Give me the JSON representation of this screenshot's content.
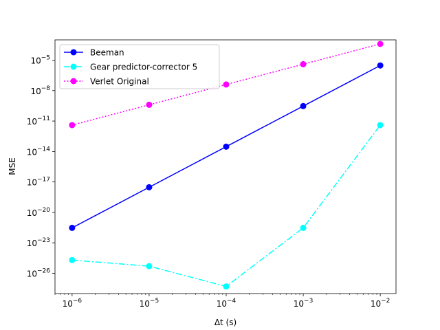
{
  "chart_data": {
    "type": "line",
    "xscale": "log",
    "yscale": "log",
    "xlabel": "Δt (s)",
    "ylabel": "MSE",
    "xlim": [
      6e-07,
      0.016
    ],
    "ylim": [
      1e-28,
      0.001
    ],
    "x": [
      1e-06,
      1e-05,
      0.0001,
      0.001,
      0.01
    ],
    "x_tick_labels": [
      {
        "base": "10",
        "exp": "−6"
      },
      {
        "base": "10",
        "exp": "−5"
      },
      {
        "base": "10",
        "exp": "−4"
      },
      {
        "base": "10",
        "exp": "−3"
      },
      {
        "base": "10",
        "exp": "−2"
      }
    ],
    "y_ticks": [
      1e-26,
      1e-23,
      1e-20,
      1e-17,
      1e-14,
      1e-11,
      1e-08,
      1e-05
    ],
    "y_tick_labels": [
      {
        "base": "10",
        "exp": "−26"
      },
      {
        "base": "10",
        "exp": "−23"
      },
      {
        "base": "10",
        "exp": "−20"
      },
      {
        "base": "10",
        "exp": "−17"
      },
      {
        "base": "10",
        "exp": "−14"
      },
      {
        "base": "10",
        "exp": "−11"
      },
      {
        "base": "10",
        "exp": "−8"
      },
      {
        "base": "10",
        "exp": "−5"
      }
    ],
    "grid": false,
    "legend_position": "top-left",
    "series": [
      {
        "name": "Beeman",
        "color": "#0000ff",
        "linestyle": "solid",
        "values": [
          3e-22,
          3e-18,
          3e-14,
          3e-10,
          3e-06
        ]
      },
      {
        "name": "Gear predictor-corrector 5",
        "color": "#00ffff",
        "linestyle": "dashdot",
        "values": [
          2e-25,
          5e-26,
          5e-28,
          3e-22,
          4e-12
        ]
      },
      {
        "name": "Verlet Original",
        "color": "#ff00ff",
        "linestyle": "dotted",
        "values": [
          4e-12,
          4e-10,
          4e-08,
          4e-06,
          0.0004
        ]
      }
    ]
  }
}
